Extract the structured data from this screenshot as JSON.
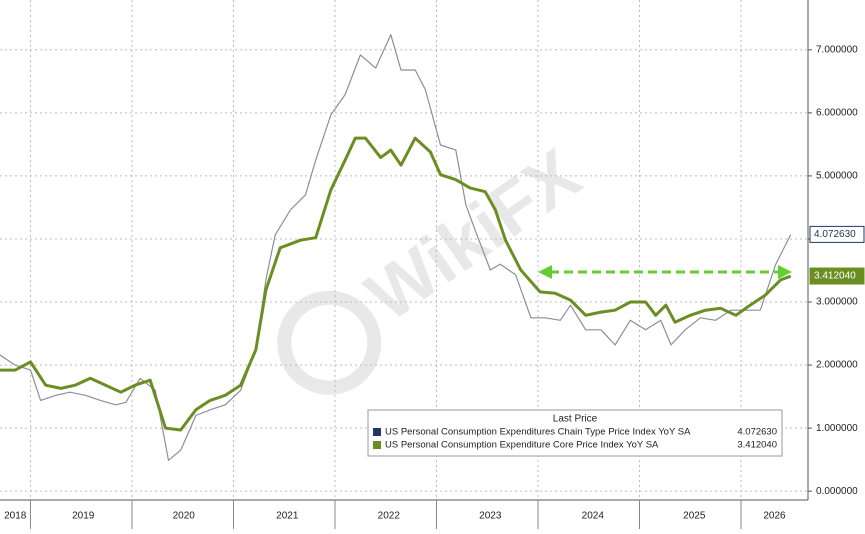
{
  "chart_data": {
    "type": "line",
    "xlim": [
      2018.7,
      2026.66
    ],
    "ylim": [
      -0.14,
      7.79
    ],
    "yticks": [
      {
        "value": 0,
        "label": "0.000000"
      },
      {
        "value": 1,
        "label": "1.000000"
      },
      {
        "value": 2,
        "label": "2.000000"
      },
      {
        "value": 3,
        "label": "3.000000"
      },
      {
        "value": 4,
        "label": "4.000000"
      },
      {
        "value": 5,
        "label": "5.000000"
      },
      {
        "value": 6,
        "label": "6.000000"
      },
      {
        "value": 7,
        "label": "7.000000"
      }
    ],
    "xgrid": [
      2019,
      2020,
      2021,
      2022,
      2023,
      2024,
      2025,
      2026
    ],
    "xticks": [
      {
        "value": 2018.85,
        "label": "2018"
      },
      {
        "value": 2019.52,
        "label": "2019"
      },
      {
        "value": 2020.51,
        "label": "2020"
      },
      {
        "value": 2021.53,
        "label": "2021"
      },
      {
        "value": 2022.53,
        "label": "2022"
      },
      {
        "value": 2023.53,
        "label": "2023"
      },
      {
        "value": 2024.54,
        "label": "2024"
      },
      {
        "value": 2025.54,
        "label": "2025"
      },
      {
        "value": 2026.33,
        "label": "2026"
      }
    ],
    "grid": true,
    "legend_title": "Last Price",
    "watermark": "WikiFX",
    "series": [
      {
        "name": "US Personal Consumption Expenditures Chain Type Price Index YoY SA",
        "color": "#8a8f99",
        "legend_color": "#1f3864",
        "last_value": {
          "value": 4.07263,
          "label": "4.072630"
        },
        "x": [
          2018.7,
          2018.85,
          2019.0,
          2019.1,
          2019.25,
          2019.39,
          2019.54,
          2019.69,
          2019.84,
          2019.94,
          2020.08,
          2020.23,
          2020.36,
          2020.48,
          2020.63,
          2020.77,
          2020.92,
          2021.07,
          2021.22,
          2021.32,
          2021.41,
          2021.56,
          2021.71,
          2021.81,
          2021.96,
          2022.1,
          2022.25,
          2022.4,
          2022.55,
          2022.65,
          2022.79,
          2022.89,
          2023.04,
          2023.19,
          2023.29,
          2023.38,
          2023.53,
          2023.63,
          2023.78,
          2023.93,
          2024.07,
          2024.22,
          2024.32,
          2024.47,
          2024.62,
          2024.76,
          2024.91,
          2025.06,
          2025.21,
          2025.31,
          2025.45,
          2025.6,
          2025.75,
          2025.9,
          2026.04,
          2026.19,
          2026.34,
          2026.49
        ],
        "values": [
          2.16,
          2.0,
          1.92,
          1.44,
          1.52,
          1.57,
          1.52,
          1.44,
          1.37,
          1.41,
          1.79,
          1.6,
          0.49,
          0.65,
          1.2,
          1.29,
          1.37,
          1.6,
          2.24,
          3.35,
          4.06,
          4.46,
          4.7,
          5.25,
          5.97,
          6.29,
          6.92,
          6.71,
          7.24,
          6.68,
          6.68,
          6.37,
          5.49,
          5.41,
          4.54,
          4.14,
          3.51,
          3.6,
          3.43,
          2.75,
          2.75,
          2.71,
          2.95,
          2.56,
          2.56,
          2.32,
          2.71,
          2.56,
          2.71,
          2.32,
          2.56,
          2.75,
          2.71,
          2.87,
          2.87,
          2.87,
          3.59,
          4.07
        ]
      },
      {
        "name": "US Personal Consumption Expenditure Core Price Index YoY SA",
        "color": "#6b8e23",
        "legend_color": "#6b8e23",
        "last_value": {
          "value": 3.41204,
          "label": "3.412040"
        },
        "x": [
          2018.7,
          2018.85,
          2019.0,
          2019.15,
          2019.3,
          2019.44,
          2019.59,
          2019.74,
          2019.89,
          2020.03,
          2020.18,
          2020.33,
          2020.48,
          2020.63,
          2020.77,
          2020.92,
          2021.07,
          2021.22,
          2021.32,
          2021.46,
          2021.66,
          2021.81,
          2021.96,
          2022.1,
          2022.2,
          2022.3,
          2022.45,
          2022.55,
          2022.65,
          2022.79,
          2022.94,
          2023.04,
          2023.19,
          2023.33,
          2023.48,
          2023.58,
          2023.68,
          2023.83,
          2024.02,
          2024.17,
          2024.32,
          2024.47,
          2024.62,
          2024.76,
          2024.91,
          2025.06,
          2025.16,
          2025.26,
          2025.35,
          2025.5,
          2025.65,
          2025.8,
          2025.95,
          2026.09,
          2026.24,
          2026.39,
          2026.49
        ],
        "values": [
          1.92,
          1.92,
          2.05,
          1.68,
          1.63,
          1.68,
          1.79,
          1.68,
          1.57,
          1.68,
          1.76,
          1.0,
          0.97,
          1.29,
          1.44,
          1.52,
          1.68,
          2.24,
          3.19,
          3.86,
          3.98,
          4.02,
          4.78,
          5.25,
          5.6,
          5.6,
          5.29,
          5.41,
          5.17,
          5.6,
          5.38,
          5.02,
          4.94,
          4.81,
          4.75,
          4.46,
          3.98,
          3.51,
          3.16,
          3.14,
          3.03,
          2.79,
          2.84,
          2.87,
          3.0,
          3.0,
          2.79,
          2.95,
          2.68,
          2.79,
          2.87,
          2.9,
          2.79,
          2.95,
          3.11,
          3.35,
          3.41
        ]
      }
    ]
  }
}
